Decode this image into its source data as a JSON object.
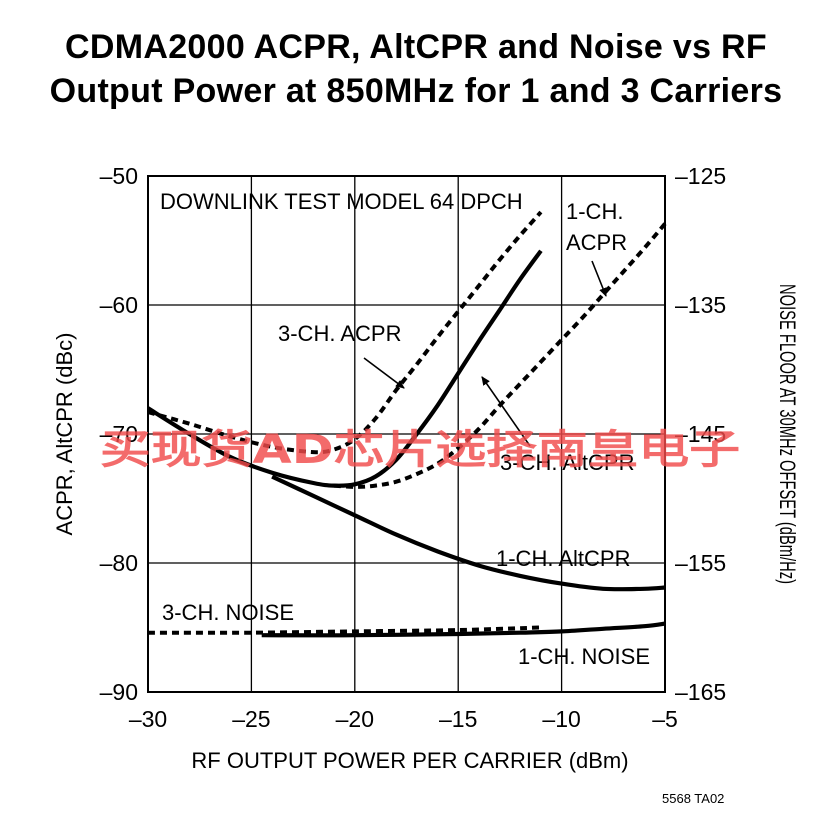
{
  "title_line1": "CDMA2000 ACPR, AltCPR and Noise vs RF",
  "title_line2": "Output Power at 850MHz for 1 and 3 Carriers",
  "watermark": "买现货AD芯片选择南皇电子",
  "figure_code": "5568 TA02",
  "chart_data": {
    "type": "line",
    "test_model_label": "DOWNLINK TEST MODEL 64 DPCH",
    "xlabel": "RF OUTPUT POWER PER CARRIER (dBm)",
    "ylabel_left": "ACPR, AltCPR (dBc)",
    "ylabel_right": "NOISE FLOOR AT 30MHz OFFSET (dBm/Hz)",
    "xlim": [
      -30,
      -5
    ],
    "ylim_left": [
      -90,
      -50
    ],
    "ylim_right": [
      -165,
      -125
    ],
    "x_ticks": [
      -30,
      -25,
      -20,
      -15,
      -10,
      -5
    ],
    "x_tick_labels": [
      "–30",
      "–25",
      "–20",
      "–15",
      "–10",
      "–5"
    ],
    "y_left_ticks": [
      -50,
      -60,
      -70,
      -80,
      -90
    ],
    "y_left_tick_labels": [
      "–50",
      "–60",
      "–70",
      "–80",
      "–90"
    ],
    "y_right_ticks": [
      -125,
      -135,
      -145,
      -155,
      -165
    ],
    "y_right_tick_labels": [
      "–125",
      "–135",
      "–145",
      "–155",
      "–165"
    ],
    "grid": true,
    "series": [
      {
        "name": "3-CH. ACPR",
        "axis": "left",
        "style": "dashed",
        "x": [
          -30,
          -28,
          -26,
          -24,
          -22,
          -21,
          -20,
          -19,
          -18,
          -17,
          -16,
          -15,
          -14,
          -13,
          -12,
          -11
        ],
        "y": [
          -68.3,
          -69.2,
          -70.2,
          -71.0,
          -71.4,
          -71.2,
          -70.4,
          -68.8,
          -66.6,
          -64.6,
          -62.5,
          -60.5,
          -58.5,
          -56.5,
          -54.6,
          -52.8
        ]
      },
      {
        "name": "1-CH. ACPR",
        "axis": "left",
        "style": "dashed",
        "x": [
          -21,
          -20,
          -19,
          -18,
          -17,
          -16,
          -15,
          -14,
          -13,
          -12,
          -11,
          -10,
          -9,
          -8,
          -7,
          -6,
          -5
        ],
        "y": [
          -74.0,
          -74.1,
          -74.0,
          -73.7,
          -73.1,
          -72.3,
          -71.1,
          -69.6,
          -67.8,
          -66.1,
          -64.4,
          -62.7,
          -61.0,
          -59.2,
          -57.4,
          -55.6,
          -53.7
        ]
      },
      {
        "name": "3-CH. AltCPR",
        "axis": "left",
        "style": "solid",
        "x": [
          -30,
          -28,
          -26,
          -24,
          -22,
          -21,
          -20,
          -19,
          -18,
          -17,
          -16,
          -15,
          -14,
          -13,
          -12,
          -11
        ],
        "y": [
          -68.0,
          -70.0,
          -71.8,
          -73.0,
          -73.8,
          -74.0,
          -73.9,
          -73.3,
          -72.0,
          -70.0,
          -67.8,
          -65.3,
          -62.8,
          -60.4,
          -58.0,
          -55.8
        ]
      },
      {
        "name": "1-CH. AltCPR",
        "axis": "left",
        "style": "solid",
        "x": [
          -24,
          -22,
          -20,
          -18,
          -16,
          -14,
          -12,
          -10,
          -8,
          -6,
          -5
        ],
        "y": [
          -73.3,
          -74.8,
          -76.3,
          -77.8,
          -79.1,
          -80.2,
          -81.0,
          -81.6,
          -82.0,
          -82.0,
          -81.9
        ]
      },
      {
        "name": "3-CH. NOISE",
        "axis": "right",
        "style": "dashed",
        "x": [
          -30,
          -25,
          -20,
          -15,
          -11
        ],
        "y": [
          -160.4,
          -160.4,
          -160.3,
          -160.2,
          -160.0
        ]
      },
      {
        "name": "1-CH. NOISE",
        "axis": "right",
        "style": "solid",
        "x": [
          -24.5,
          -20,
          -15,
          -12,
          -10,
          -8,
          -6,
          -5
        ],
        "y": [
          -160.6,
          -160.6,
          -160.5,
          -160.4,
          -160.3,
          -160.1,
          -159.9,
          -159.7
        ]
      }
    ],
    "annotations": [
      {
        "text": "3-CH. ACPR",
        "target": "3-CH. ACPR"
      },
      {
        "text": "1-CH.",
        "target": "1-CH. ACPR"
      },
      {
        "text": "ACPR",
        "target": "1-CH. ACPR"
      },
      {
        "text": "3-CH. AltCPR",
        "target": "3-CH. AltCPR"
      },
      {
        "text": "1-CH. AltCPR",
        "target": "1-CH. AltCPR"
      },
      {
        "text": "3-CH. NOISE",
        "target": "3-CH. NOISE"
      },
      {
        "text": "1-CH. NOISE",
        "target": "1-CH. NOISE"
      }
    ]
  }
}
